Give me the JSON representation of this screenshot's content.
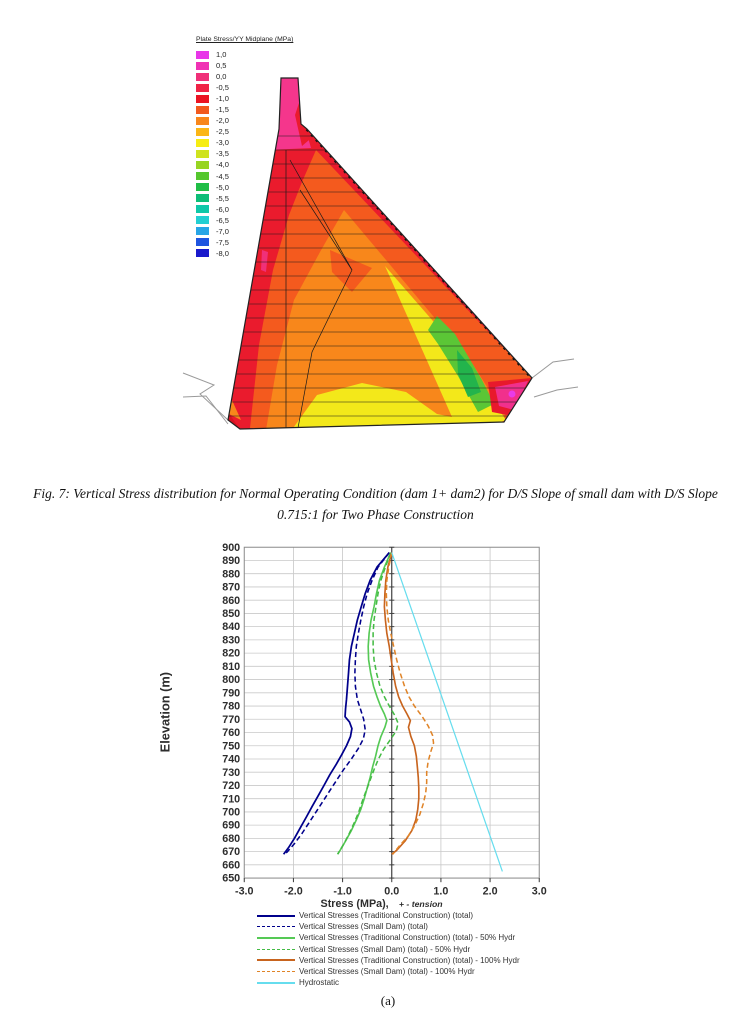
{
  "contour_legend": {
    "title": "Plate Stress/YY Midplane  (MPa)",
    "entries": [
      {
        "value": "1,0",
        "color": "#E836E8"
      },
      {
        "value": "0,5",
        "color": "#F032B4"
      },
      {
        "value": "0,0",
        "color": "#F03078"
      },
      {
        "value": "-0,5",
        "color": "#F02346"
      },
      {
        "value": "-1,0",
        "color": "#EB1423"
      },
      {
        "value": "-1,5",
        "color": "#F25A1E"
      },
      {
        "value": "-2,0",
        "color": "#F8871B"
      },
      {
        "value": "-2,5",
        "color": "#FBB616"
      },
      {
        "value": "-3,0",
        "color": "#F6ED13"
      },
      {
        "value": "-3,5",
        "color": "#CFE31F"
      },
      {
        "value": "-4,0",
        "color": "#97D522"
      },
      {
        "value": "-4,5",
        "color": "#55C72E"
      },
      {
        "value": "-5,0",
        "color": "#1FBE46"
      },
      {
        "value": "-5,5",
        "color": "#0DBE78"
      },
      {
        "value": "-6,0",
        "color": "#0FC8A8"
      },
      {
        "value": "-6,5",
        "color": "#23CFD2"
      },
      {
        "value": "-7,0",
        "color": "#28A5E6"
      },
      {
        "value": "-7,5",
        "color": "#1F55E0"
      },
      {
        "value": "-8,0",
        "color": "#1A1ACC"
      }
    ]
  },
  "caption": {
    "line1": "Fig. 7: Vertical Stress distribution for Normal Operating Condition (dam 1+ dam2) for D/S Slope of small dam with D/S Slope",
    "line2": "0.715:1 for Two Phase Construction"
  },
  "chart_data": {
    "type": "line",
    "title": "",
    "ylabel": "Elevation (m)",
    "xlabel": "Stress (MPa),",
    "xlabel_note": "+ - tension",
    "xlim": [
      -3,
      3
    ],
    "ylim": [
      650,
      900
    ],
    "grid": true,
    "legend_position": "bottom",
    "x_ticks": [
      "-3.0",
      "-2.0",
      "-1.0",
      "0.0",
      "1.0",
      "2.0",
      "3.0"
    ],
    "y_ticks": [
      "900",
      "890",
      "880",
      "870",
      "860",
      "850",
      "840",
      "830",
      "820",
      "810",
      "800",
      "790",
      "780",
      "770",
      "760",
      "750",
      "740",
      "730",
      "720",
      "710",
      "700",
      "690",
      "680",
      "670",
      "660",
      "650"
    ],
    "series": [
      {
        "name": "Vertical Stresses (Traditional Construction) (total)",
        "color": "#00008B",
        "dash": "solid",
        "width": 1.7,
        "points": [
          [
            -0.05,
            896
          ],
          [
            -0.3,
            885
          ],
          [
            -0.44,
            875
          ],
          [
            -0.54,
            865
          ],
          [
            -0.62,
            855
          ],
          [
            -0.7,
            845
          ],
          [
            -0.76,
            835
          ],
          [
            -0.82,
            825
          ],
          [
            -0.86,
            815
          ],
          [
            -0.88,
            805
          ],
          [
            -0.9,
            795
          ],
          [
            -0.92,
            785
          ],
          [
            -0.94,
            778
          ],
          [
            -0.95,
            772
          ],
          [
            -0.86,
            768
          ],
          [
            -0.81,
            763
          ],
          [
            -0.84,
            757
          ],
          [
            -0.92,
            750
          ],
          [
            -1.02,
            743
          ],
          [
            -1.13,
            736
          ],
          [
            -1.26,
            728
          ],
          [
            -1.38,
            720
          ],
          [
            -1.5,
            712
          ],
          [
            -1.62,
            704
          ],
          [
            -1.74,
            696
          ],
          [
            -1.86,
            688
          ],
          [
            -1.98,
            680
          ],
          [
            -2.1,
            673
          ],
          [
            -2.2,
            668
          ]
        ]
      },
      {
        "name": "Vertical Stresses (Small Dam) (total)",
        "color": "#00008B",
        "dash": "dashed",
        "width": 1.5,
        "points": [
          [
            -0.05,
            896
          ],
          [
            -0.28,
            885
          ],
          [
            -0.4,
            875
          ],
          [
            -0.5,
            865
          ],
          [
            -0.57,
            855
          ],
          [
            -0.63,
            845
          ],
          [
            -0.68,
            835
          ],
          [
            -0.72,
            825
          ],
          [
            -0.74,
            815
          ],
          [
            -0.75,
            805
          ],
          [
            -0.74,
            795
          ],
          [
            -0.7,
            785
          ],
          [
            -0.64,
            778
          ],
          [
            -0.57,
            770
          ],
          [
            -0.54,
            762
          ],
          [
            -0.58,
            755
          ],
          [
            -0.68,
            748
          ],
          [
            -0.82,
            740
          ],
          [
            -0.98,
            732
          ],
          [
            -1.12,
            724
          ],
          [
            -1.26,
            716
          ],
          [
            -1.4,
            708
          ],
          [
            -1.54,
            700
          ],
          [
            -1.68,
            692
          ],
          [
            -1.82,
            684
          ],
          [
            -1.98,
            676
          ],
          [
            -2.12,
            670
          ],
          [
            -2.18,
            668
          ]
        ]
      },
      {
        "name": "Vertical Stresses (Traditional Construction) (total) - 50% Hydr",
        "color": "#55C955",
        "dash": "solid",
        "width": 1.6,
        "points": [
          [
            -0.02,
            896
          ],
          [
            -0.15,
            885
          ],
          [
            -0.25,
            875
          ],
          [
            -0.31,
            865
          ],
          [
            -0.36,
            855
          ],
          [
            -0.42,
            845
          ],
          [
            -0.46,
            835
          ],
          [
            -0.48,
            825
          ],
          [
            -0.47,
            815
          ],
          [
            -0.43,
            805
          ],
          [
            -0.37,
            795
          ],
          [
            -0.3,
            787
          ],
          [
            -0.23,
            780
          ],
          [
            -0.15,
            774
          ],
          [
            -0.1,
            769
          ],
          [
            -0.14,
            764
          ],
          [
            -0.22,
            757
          ],
          [
            -0.28,
            750
          ],
          [
            -0.33,
            742
          ],
          [
            -0.39,
            734
          ],
          [
            -0.44,
            726
          ],
          [
            -0.5,
            718
          ],
          [
            -0.56,
            710
          ],
          [
            -0.63,
            702
          ],
          [
            -0.72,
            694
          ],
          [
            -0.82,
            686
          ],
          [
            -0.94,
            678
          ],
          [
            -1.05,
            671
          ],
          [
            -1.1,
            668
          ]
        ]
      },
      {
        "name": "Vertical Stresses (Small Dam) (total) - 50% Hydr",
        "color": "#44BB44",
        "dash": "dashed",
        "width": 1.5,
        "points": [
          [
            -0.02,
            896
          ],
          [
            -0.13,
            885
          ],
          [
            -0.22,
            875
          ],
          [
            -0.28,
            865
          ],
          [
            -0.32,
            855
          ],
          [
            -0.36,
            845
          ],
          [
            -0.38,
            835
          ],
          [
            -0.38,
            825
          ],
          [
            -0.36,
            815
          ],
          [
            -0.31,
            805
          ],
          [
            -0.24,
            795
          ],
          [
            -0.15,
            787
          ],
          [
            -0.05,
            780
          ],
          [
            0.06,
            773
          ],
          [
            0.13,
            767
          ],
          [
            0.09,
            761
          ],
          [
            -0.04,
            754
          ],
          [
            -0.17,
            747
          ],
          [
            -0.27,
            740
          ],
          [
            -0.36,
            732
          ],
          [
            -0.44,
            724
          ],
          [
            -0.52,
            716
          ],
          [
            -0.6,
            708
          ],
          [
            -0.67,
            700
          ],
          [
            -0.76,
            692
          ],
          [
            -0.86,
            684
          ],
          [
            -0.97,
            676
          ],
          [
            -1.07,
            670
          ],
          [
            -1.1,
            668
          ]
        ]
      },
      {
        "name": "Vertical Stresses (Traditional Construction) (total) - 100% Hydr",
        "color": "#C8641E",
        "dash": "solid",
        "width": 1.6,
        "points": [
          [
            0.0,
            896
          ],
          [
            -0.08,
            885
          ],
          [
            -0.12,
            875
          ],
          [
            -0.14,
            865
          ],
          [
            -0.15,
            855
          ],
          [
            -0.13,
            845
          ],
          [
            -0.1,
            835
          ],
          [
            -0.05,
            825
          ],
          [
            -0.01,
            815
          ],
          [
            0.03,
            805
          ],
          [
            0.08,
            795
          ],
          [
            0.14,
            787
          ],
          [
            0.22,
            780
          ],
          [
            0.31,
            774
          ],
          [
            0.38,
            769
          ],
          [
            0.34,
            764
          ],
          [
            0.39,
            757
          ],
          [
            0.46,
            750
          ],
          [
            0.5,
            742
          ],
          [
            0.52,
            734
          ],
          [
            0.54,
            726
          ],
          [
            0.55,
            718
          ],
          [
            0.55,
            710
          ],
          [
            0.53,
            702
          ],
          [
            0.49,
            694
          ],
          [
            0.41,
            686
          ],
          [
            0.27,
            678
          ],
          [
            0.1,
            671
          ],
          [
            0.0,
            668
          ]
        ]
      },
      {
        "name": "Vertical Stresses (Small Dam) (total) - 100% Hydr",
        "color": "#E08428",
        "dash": "dashed",
        "width": 1.5,
        "points": [
          [
            0.0,
            896
          ],
          [
            -0.06,
            885
          ],
          [
            -0.1,
            875
          ],
          [
            -0.11,
            865
          ],
          [
            -0.1,
            855
          ],
          [
            -0.07,
            845
          ],
          [
            -0.02,
            835
          ],
          [
            0.04,
            825
          ],
          [
            0.1,
            815
          ],
          [
            0.17,
            805
          ],
          [
            0.26,
            795
          ],
          [
            0.35,
            787
          ],
          [
            0.46,
            780
          ],
          [
            0.62,
            772
          ],
          [
            0.74,
            765
          ],
          [
            0.83,
            758
          ],
          [
            0.85,
            752
          ],
          [
            0.79,
            745
          ],
          [
            0.74,
            738
          ],
          [
            0.71,
            730
          ],
          [
            0.71,
            722
          ],
          [
            0.69,
            714
          ],
          [
            0.64,
            706
          ],
          [
            0.57,
            698
          ],
          [
            0.47,
            690
          ],
          [
            0.34,
            682
          ],
          [
            0.17,
            675
          ],
          [
            0.02,
            668
          ]
        ]
      },
      {
        "name": "Hydrostatic",
        "color": "#66DDEE",
        "dash": "solid",
        "width": 1.2,
        "points": [
          [
            0.0,
            896
          ],
          [
            2.25,
            655
          ]
        ]
      }
    ]
  },
  "sub_label": "(a)"
}
